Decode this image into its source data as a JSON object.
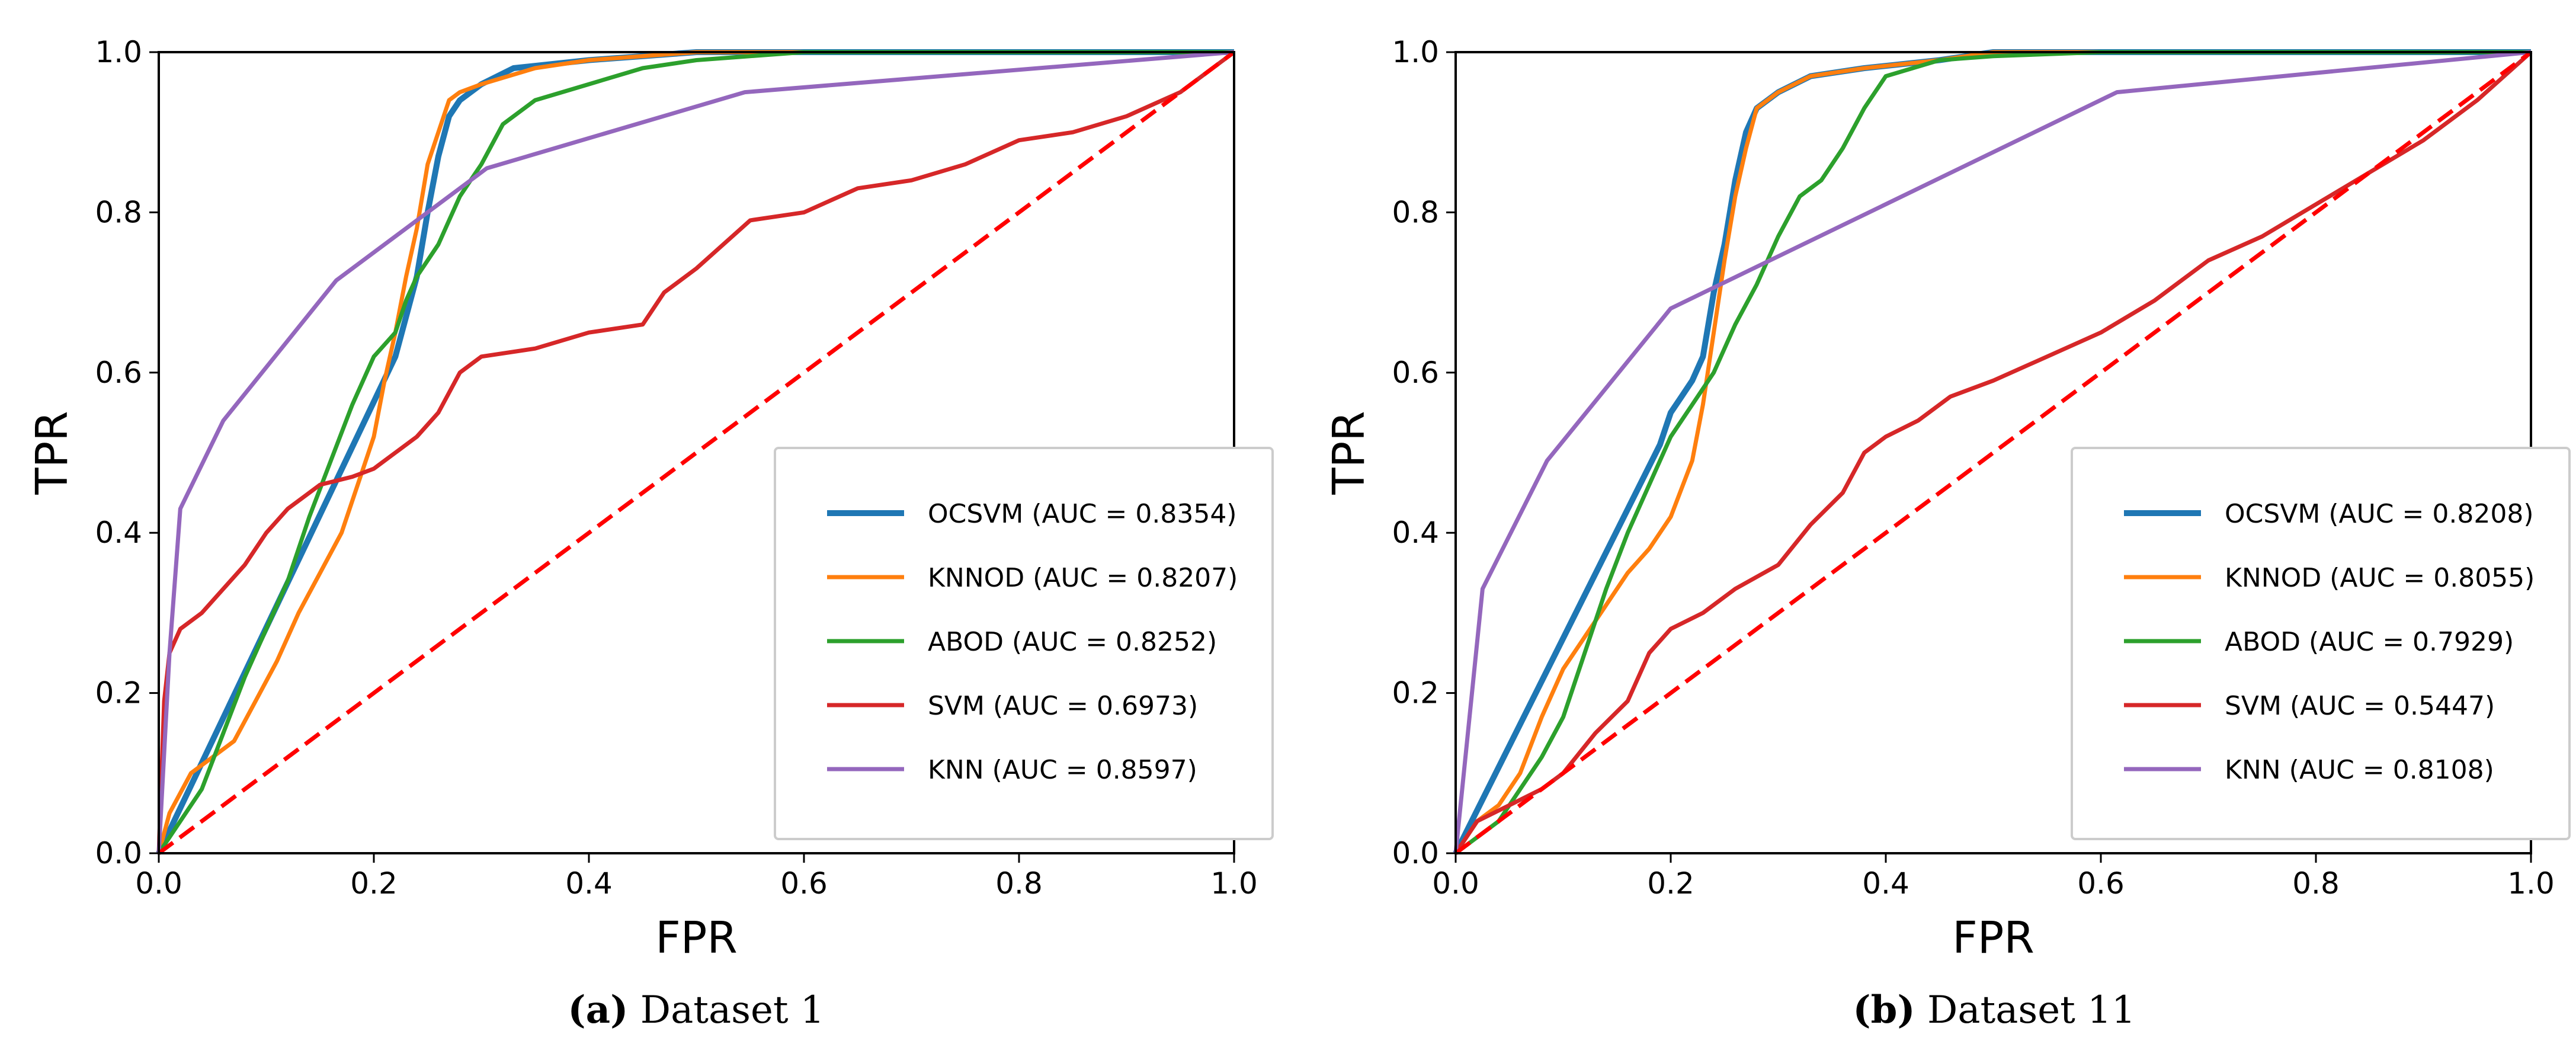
{
  "chart_data": [
    {
      "type": "line",
      "caption": {
        "label": "(a)",
        "text": " Dataset 1"
      },
      "xlabel": "FPR",
      "ylabel": "TPR",
      "xlim": [
        0.0,
        1.0
      ],
      "ylim": [
        0.0,
        1.0
      ],
      "xticks": [
        "0.0",
        "0.2",
        "0.4",
        "0.6",
        "0.8",
        "1.0"
      ],
      "yticks": [
        "0.0",
        "0.2",
        "0.4",
        "0.6",
        "0.8",
        "1.0"
      ],
      "grid": false,
      "legend_loc": "lower-right",
      "series": [
        {
          "name": "OCSVM (AUC = 0.8354)",
          "color": "#1f77b4",
          "x": [
            0,
            0.22,
            0.23,
            0.24,
            0.25,
            0.26,
            0.27,
            0.28,
            0.3,
            0.33,
            0.4,
            0.5,
            0.6,
            1.0
          ],
          "y": [
            0,
            0.62,
            0.67,
            0.72,
            0.8,
            0.87,
            0.92,
            0.94,
            0.96,
            0.98,
            0.99,
            1.0,
            1.0,
            1.0
          ]
        },
        {
          "name": "KNNOD (AUC = 0.8207)",
          "color": "#ff7f0e",
          "x": [
            0,
            0.01,
            0.03,
            0.05,
            0.07,
            0.09,
            0.11,
            0.13,
            0.15,
            0.17,
            0.19,
            0.2,
            0.21,
            0.22,
            0.23,
            0.24,
            0.25,
            0.26,
            0.27,
            0.28,
            0.3,
            0.35,
            0.4,
            0.45,
            0.5,
            0.6,
            1.0
          ],
          "y": [
            0,
            0.05,
            0.1,
            0.12,
            0.14,
            0.19,
            0.24,
            0.3,
            0.35,
            0.4,
            0.48,
            0.52,
            0.59,
            0.65,
            0.72,
            0.78,
            0.86,
            0.9,
            0.94,
            0.95,
            0.96,
            0.98,
            0.99,
            0.995,
            1.0,
            1.0,
            1.0
          ]
        },
        {
          "name": "ABOD (AUC = 0.8252)",
          "color": "#2ca02c",
          "x": [
            0,
            0.02,
            0.04,
            0.06,
            0.08,
            0.1,
            0.12,
            0.14,
            0.16,
            0.18,
            0.2,
            0.22,
            0.23,
            0.24,
            0.25,
            0.26,
            0.27,
            0.28,
            0.29,
            0.3,
            0.32,
            0.35,
            0.4,
            0.45,
            0.5,
            0.6,
            1.0
          ],
          "y": [
            0,
            0.04,
            0.08,
            0.15,
            0.22,
            0.28,
            0.34,
            0.42,
            0.49,
            0.56,
            0.62,
            0.65,
            0.69,
            0.72,
            0.74,
            0.76,
            0.79,
            0.82,
            0.84,
            0.86,
            0.91,
            0.94,
            0.96,
            0.98,
            0.99,
            1.0,
            1.0
          ]
        },
        {
          "name": "SVM (AUC = 0.6973)",
          "color": "#d62728",
          "x": [
            0,
            0.005,
            0.01,
            0.02,
            0.04,
            0.06,
            0.08,
            0.1,
            0.12,
            0.15,
            0.18,
            0.2,
            0.22,
            0.24,
            0.26,
            0.28,
            0.3,
            0.35,
            0.4,
            0.45,
            0.47,
            0.5,
            0.55,
            0.6,
            0.65,
            0.7,
            0.75,
            0.8,
            0.85,
            0.9,
            0.95,
            1.0
          ],
          "y": [
            0,
            0.19,
            0.25,
            0.28,
            0.3,
            0.33,
            0.36,
            0.4,
            0.43,
            0.46,
            0.47,
            0.48,
            0.5,
            0.52,
            0.55,
            0.6,
            0.62,
            0.63,
            0.65,
            0.66,
            0.7,
            0.73,
            0.79,
            0.8,
            0.83,
            0.84,
            0.86,
            0.89,
            0.9,
            0.92,
            0.95,
            1.0
          ]
        },
        {
          "name": "KNN (AUC = 0.8597)",
          "color": "#9467bd",
          "x": [
            0,
            0.01,
            0.02,
            0.06,
            0.165,
            0.305,
            0.545,
            1.0
          ],
          "y": [
            0,
            0.25,
            0.43,
            0.54,
            0.715,
            0.855,
            0.95,
            1.0
          ]
        },
        {
          "name": "",
          "color": "#ff0000",
          "dashed": true,
          "x": [
            0,
            1
          ],
          "y": [
            0,
            1
          ]
        }
      ]
    },
    {
      "type": "line",
      "caption": {
        "label": "(b)",
        "text": " Dataset 11"
      },
      "xlabel": "FPR",
      "ylabel": "TPR",
      "xlim": [
        0.0,
        1.0
      ],
      "ylim": [
        0.0,
        1.0
      ],
      "xticks": [
        "0.0",
        "0.2",
        "0.4",
        "0.6",
        "0.8",
        "1.0"
      ],
      "yticks": [
        "0.0",
        "0.2",
        "0.4",
        "0.6",
        "0.8",
        "1.0"
      ],
      "grid": false,
      "legend_loc": "lower-right",
      "series": [
        {
          "name": "OCSVM (AUC = 0.8208)",
          "color": "#1f77b4",
          "x": [
            0,
            0.19,
            0.2,
            0.21,
            0.22,
            0.23,
            0.24,
            0.25,
            0.26,
            0.27,
            0.28,
            0.3,
            0.33,
            0.38,
            0.45,
            0.5,
            1.0
          ],
          "y": [
            0,
            0.51,
            0.55,
            0.57,
            0.59,
            0.62,
            0.7,
            0.76,
            0.84,
            0.9,
            0.93,
            0.95,
            0.97,
            0.98,
            0.99,
            1.0,
            1.0
          ]
        },
        {
          "name": "KNNOD (AUC = 0.8055)",
          "color": "#ff7f0e",
          "x": [
            0,
            0.02,
            0.04,
            0.06,
            0.08,
            0.1,
            0.12,
            0.14,
            0.16,
            0.18,
            0.2,
            0.22,
            0.23,
            0.24,
            0.25,
            0.26,
            0.27,
            0.28,
            0.3,
            0.33,
            0.38,
            0.45,
            0.5,
            1.0
          ],
          "y": [
            0,
            0.04,
            0.06,
            0.1,
            0.17,
            0.23,
            0.27,
            0.31,
            0.35,
            0.38,
            0.42,
            0.49,
            0.56,
            0.65,
            0.74,
            0.82,
            0.88,
            0.93,
            0.95,
            0.97,
            0.98,
            0.99,
            1.0,
            1.0
          ]
        },
        {
          "name": "ABOD (AUC = 0.7929)",
          "color": "#2ca02c",
          "x": [
            0,
            0.02,
            0.04,
            0.06,
            0.08,
            0.1,
            0.12,
            0.14,
            0.16,
            0.18,
            0.2,
            0.22,
            0.24,
            0.26,
            0.28,
            0.3,
            0.32,
            0.34,
            0.36,
            0.38,
            0.4,
            0.45,
            0.5,
            0.6,
            1.0
          ],
          "y": [
            0,
            0.02,
            0.04,
            0.08,
            0.12,
            0.17,
            0.25,
            0.33,
            0.4,
            0.46,
            0.52,
            0.56,
            0.6,
            0.66,
            0.71,
            0.77,
            0.82,
            0.84,
            0.88,
            0.93,
            0.97,
            0.99,
            0.995,
            1.0,
            1.0
          ]
        },
        {
          "name": "SVM (AUC = 0.5447)",
          "color": "#d62728",
          "x": [
            0,
            0.02,
            0.05,
            0.08,
            0.1,
            0.13,
            0.16,
            0.18,
            0.2,
            0.23,
            0.26,
            0.3,
            0.33,
            0.36,
            0.38,
            0.4,
            0.43,
            0.46,
            0.5,
            0.55,
            0.6,
            0.65,
            0.7,
            0.75,
            0.8,
            0.85,
            0.9,
            0.95,
            1.0
          ],
          "y": [
            0,
            0.04,
            0.06,
            0.08,
            0.1,
            0.15,
            0.19,
            0.25,
            0.28,
            0.3,
            0.33,
            0.36,
            0.41,
            0.45,
            0.5,
            0.52,
            0.54,
            0.57,
            0.59,
            0.62,
            0.65,
            0.69,
            0.74,
            0.77,
            0.81,
            0.85,
            0.89,
            0.94,
            1.0
          ]
        },
        {
          "name": "KNN (AUC = 0.8108)",
          "color": "#9467bd",
          "x": [
            0,
            0.025,
            0.085,
            0.2,
            0.615,
            1.0
          ],
          "y": [
            0,
            0.33,
            0.49,
            0.68,
            0.95,
            1.0
          ]
        },
        {
          "name": "",
          "color": "#ff0000",
          "dashed": true,
          "x": [
            0,
            1
          ],
          "y": [
            0,
            1
          ]
        }
      ]
    }
  ]
}
